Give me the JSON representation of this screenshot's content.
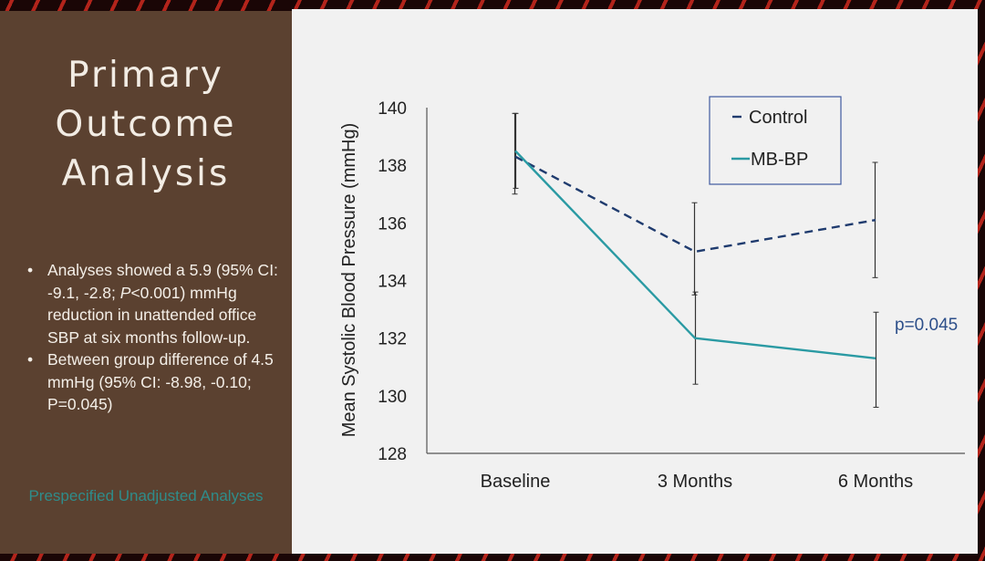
{
  "slide": {
    "title_lines": [
      "Primary",
      "Outcome",
      "Analysis"
    ],
    "bullets": [
      "Analyses showed a 5.9 (95% CI: -9.1, -2.8; P<0.001) mmHg reduction in unattended office SBP at six months follow-up.",
      "Between group difference of 4.5 mmHg (95% CI: -8.98, -0.10; P=0.045)"
    ],
    "bullet_italic_prefix": "P",
    "subnote": "Prespecified Unadjusted Analyses"
  },
  "colors": {
    "control": "#1f3b6e",
    "mbbp": "#2a9aa3",
    "axis": "#555555",
    "text": "#222222",
    "annotation": "#2d4f8a",
    "left_panel": "#5b4130",
    "subnote": "#2f8c8a"
  },
  "chart_data": {
    "type": "line",
    "categories": [
      "Baseline",
      "3 Months",
      "6 Months"
    ],
    "ylabel": "Mean Systolic Blood Pressure (mmHg)",
    "ylim": [
      128,
      140
    ],
    "yticks": [
      128,
      130,
      132,
      134,
      136,
      138,
      140
    ],
    "legend_placement": "top-right",
    "grid": false,
    "series": [
      {
        "name": "Control",
        "style": "dashed",
        "values": [
          138.3,
          135.0,
          136.1
        ],
        "error_low": [
          137.0,
          133.5,
          134.1
        ],
        "error_high": [
          139.8,
          136.7,
          138.1
        ]
      },
      {
        "name": "MB-BP",
        "style": "solid",
        "values": [
          138.5,
          132.0,
          131.3
        ],
        "error_low": [
          137.2,
          130.4,
          129.6
        ],
        "error_high": [
          139.8,
          133.6,
          132.9
        ]
      }
    ],
    "annotation": "p=0.045"
  }
}
